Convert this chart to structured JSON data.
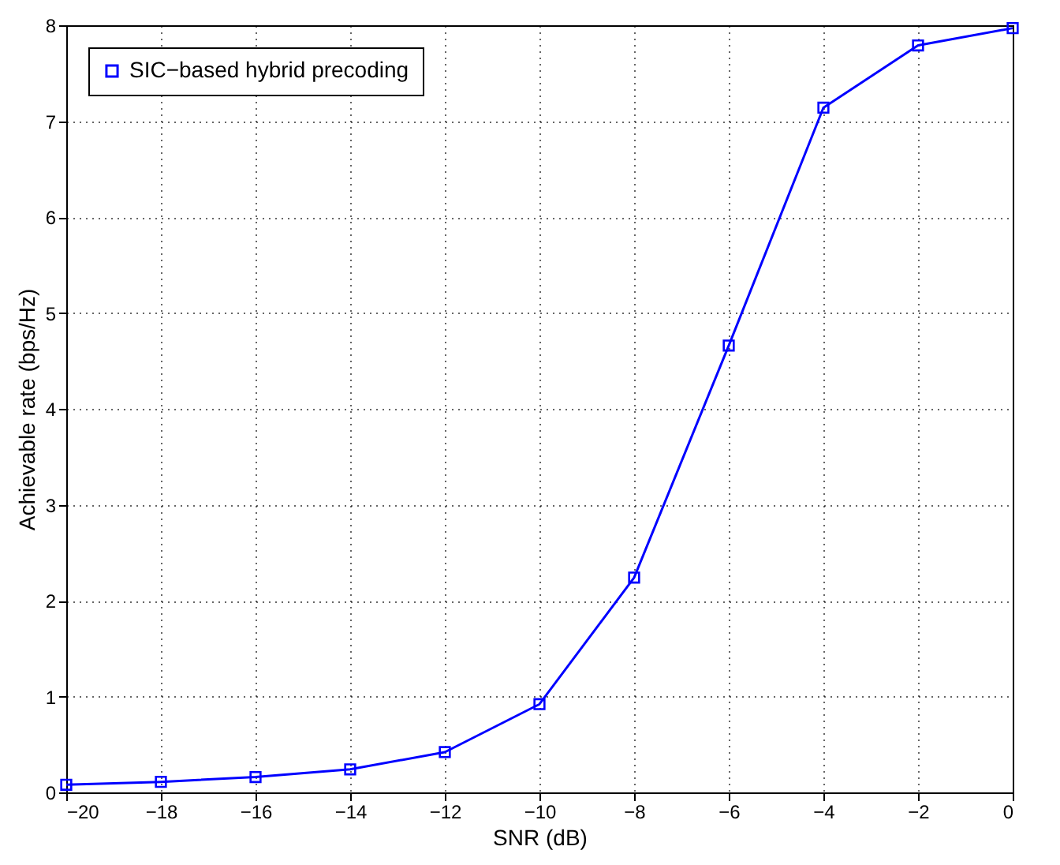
{
  "chart_data": {
    "type": "line",
    "xlabel": "SNR (dB)",
    "ylabel": "Achievable rate (bps/Hz)",
    "x": [
      -20,
      -18,
      -16,
      -14,
      -12,
      -10,
      -8,
      -6,
      -4,
      -2,
      0
    ],
    "series": [
      {
        "name": "SIC−based hybrid precoding",
        "color": "#0000ff",
        "values": [
          0.08,
          0.11,
          0.16,
          0.24,
          0.42,
          0.92,
          2.24,
          4.66,
          7.14,
          7.79,
          7.97
        ]
      }
    ],
    "xlim": [
      -20,
      0
    ],
    "xticks": [
      {
        "value": -20,
        "label": "−20"
      },
      {
        "value": -18,
        "label": "−18"
      },
      {
        "value": -16,
        "label": "−16"
      },
      {
        "value": -14,
        "label": "−14"
      },
      {
        "value": -12,
        "label": "−12"
      },
      {
        "value": -10,
        "label": "−10"
      },
      {
        "value": -8,
        "label": "−8"
      },
      {
        "value": -6,
        "label": "−6"
      },
      {
        "value": -4,
        "label": "−4"
      },
      {
        "value": -2,
        "label": "−2"
      },
      0
    ],
    "ylim": [
      0,
      8
    ],
    "yticks": [
      0,
      1,
      2,
      3,
      4,
      5,
      6,
      7,
      8
    ],
    "grid": true,
    "legend": "top left",
    "marker": "square",
    "line_style": "solid"
  }
}
